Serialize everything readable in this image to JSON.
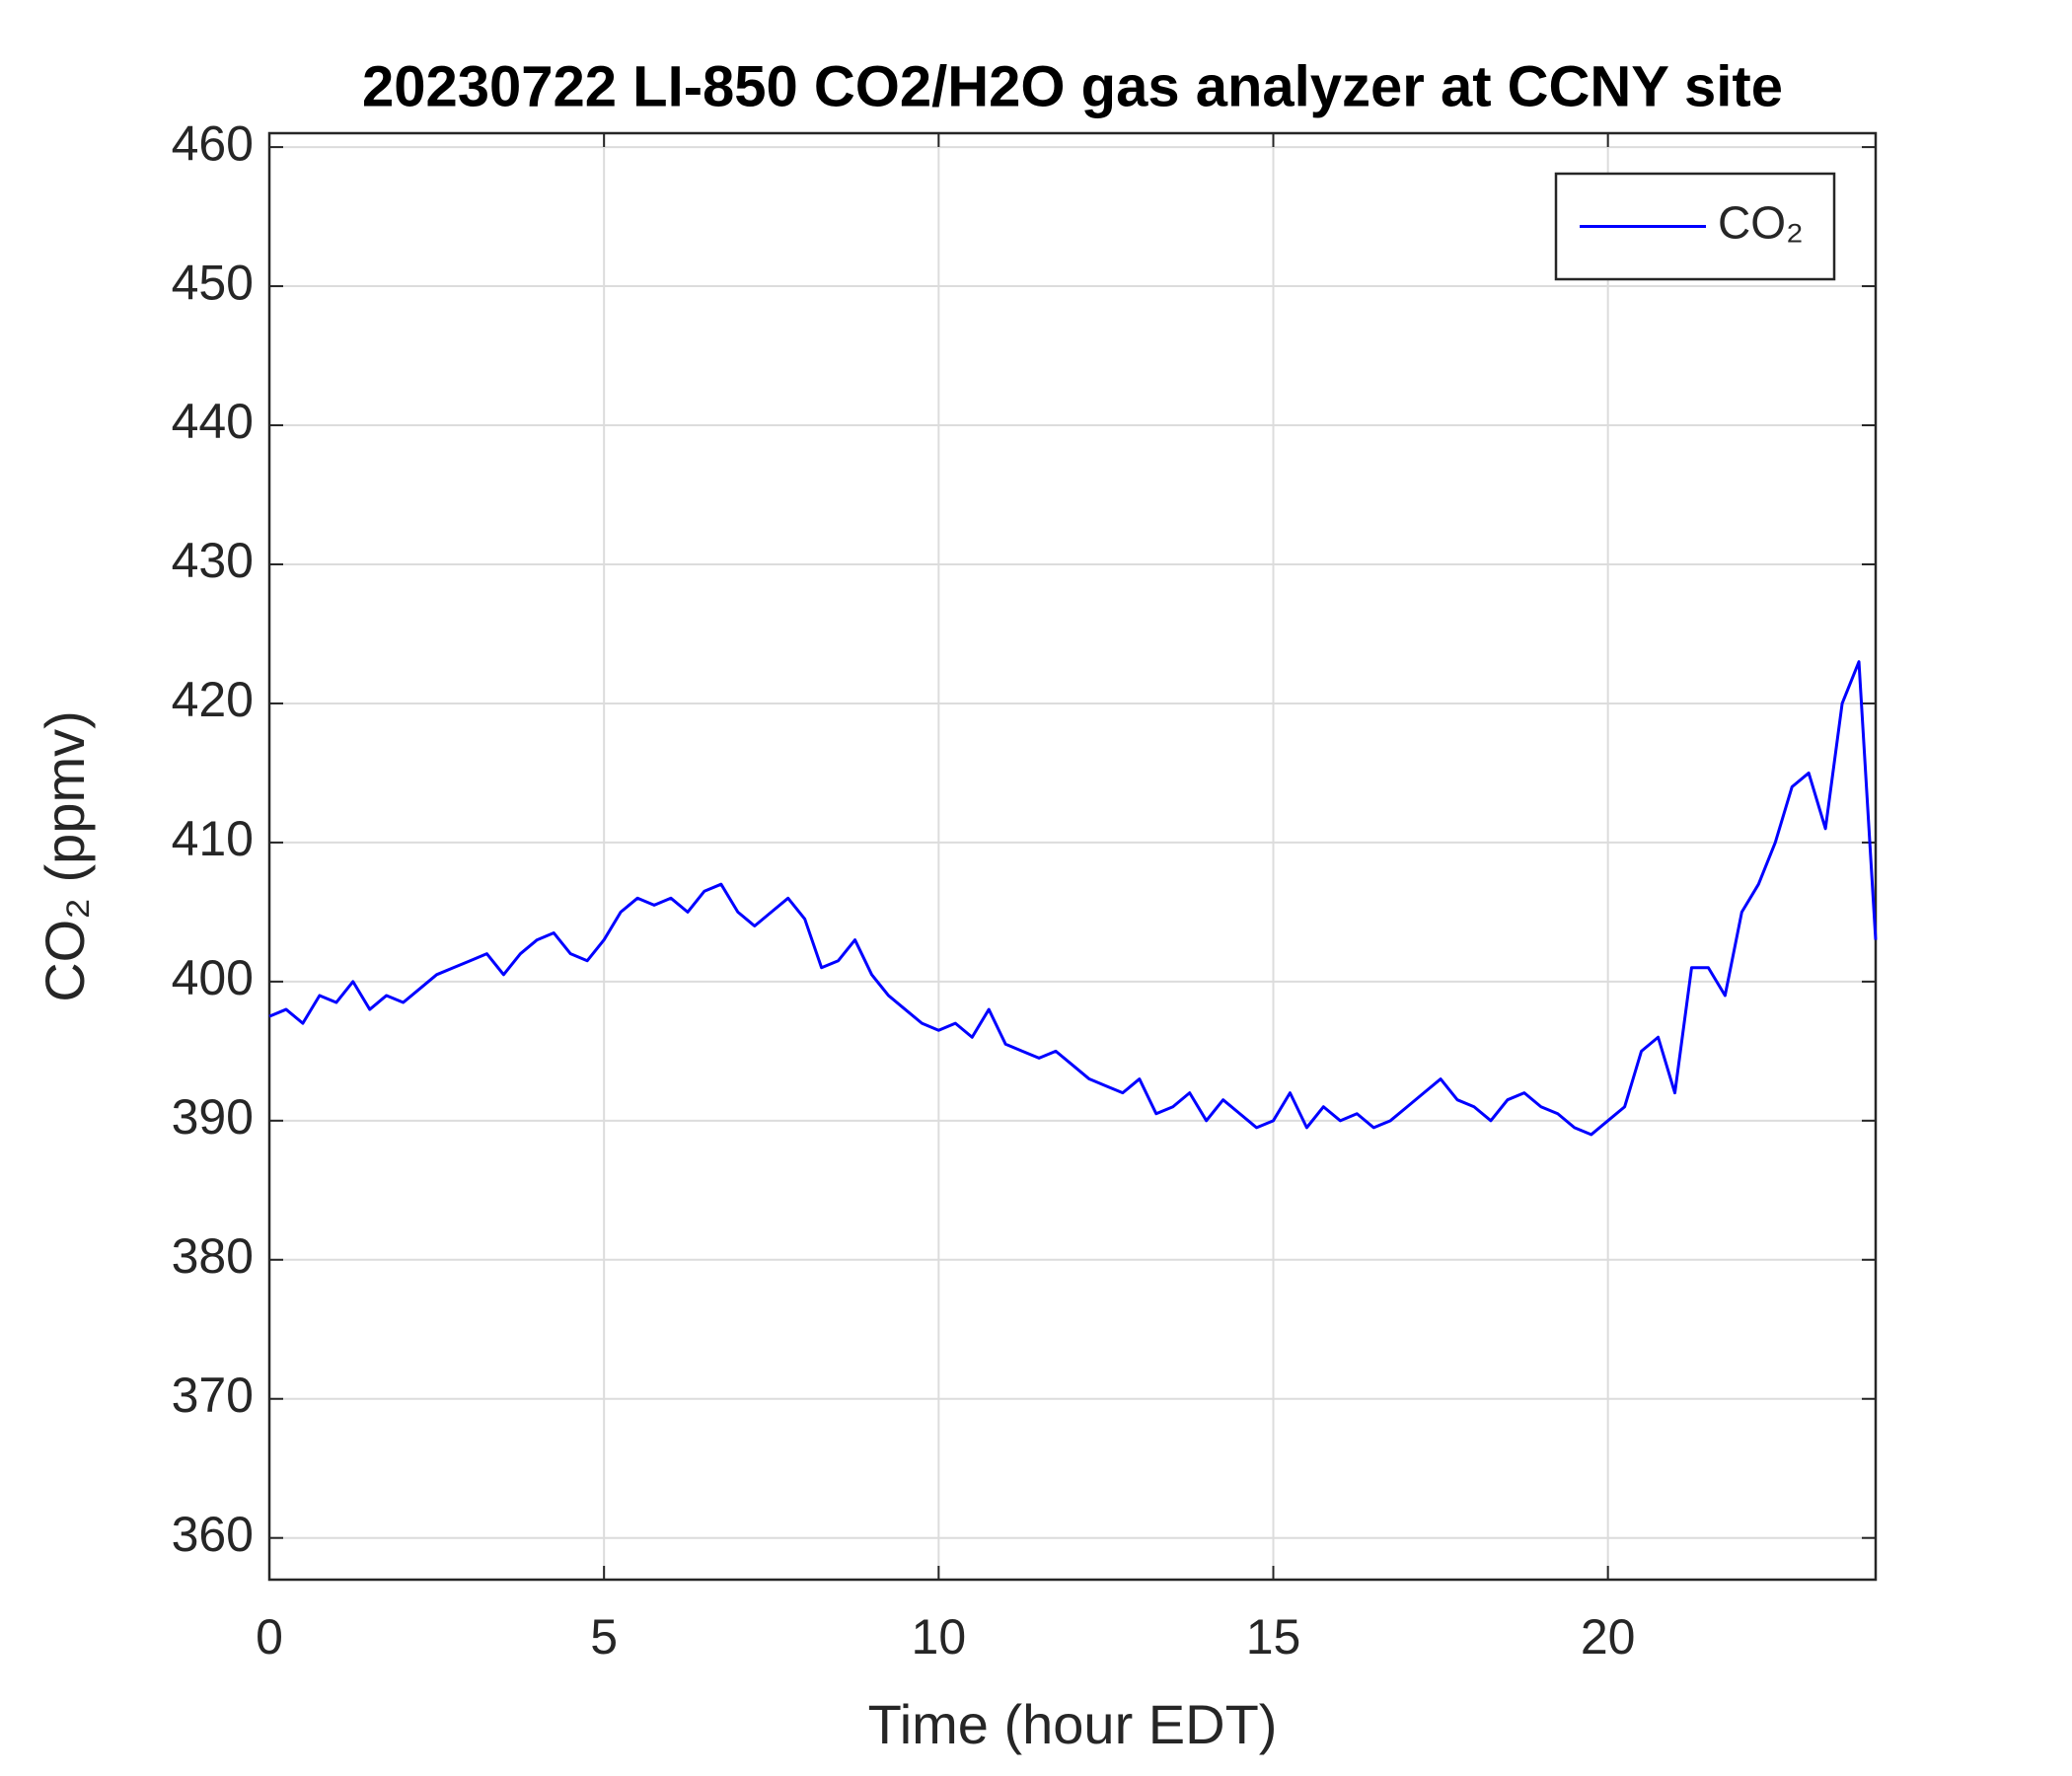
{
  "chart_data": {
    "type": "line",
    "title": "20230722 LI-850 CO2/H2O gas analyzer at CCNY site",
    "x_label": "Time (hour EDT)",
    "y_label": "CO₂ (ppmv)",
    "x": [
      0,
      0.25,
      0.5,
      0.75,
      1,
      1.25,
      1.5,
      1.75,
      2,
      2.25,
      2.5,
      2.75,
      3,
      3.25,
      3.5,
      3.75,
      4,
      4.25,
      4.5,
      4.75,
      5,
      5.25,
      5.5,
      5.75,
      6,
      6.25,
      6.5,
      6.75,
      7,
      7.25,
      7.5,
      7.75,
      8,
      8.25,
      8.5,
      8.75,
      9,
      9.25,
      9.5,
      9.75,
      10,
      10.25,
      10.5,
      10.75,
      11,
      11.25,
      11.5,
      11.75,
      12,
      12.25,
      12.5,
      12.75,
      13,
      13.25,
      13.5,
      13.75,
      14,
      14.25,
      14.5,
      14.75,
      15,
      15.25,
      15.5,
      15.75,
      16,
      16.25,
      16.5,
      16.75,
      17,
      17.25,
      17.5,
      17.75,
      18,
      18.25,
      18.5,
      18.75,
      19,
      19.25,
      19.5,
      19.75,
      20,
      20.25,
      20.5,
      20.75,
      21,
      21.25,
      21.5,
      21.75,
      22,
      22.25,
      22.5,
      22.75,
      23,
      23.25,
      23.5,
      23.75,
      24
    ],
    "series": [
      {
        "name": "CO₂",
        "color": "#0000ff",
        "values": [
          397.5,
          398,
          397,
          399,
          398.5,
          400,
          398,
          399,
          398.5,
          399.5,
          400.5,
          401,
          401.5,
          402,
          400.5,
          402,
          403,
          403.5,
          402,
          401.5,
          403,
          405,
          406,
          405.5,
          406,
          405,
          406.5,
          407,
          405,
          404,
          405,
          406,
          404.5,
          401,
          401.5,
          403,
          400.5,
          399,
          398,
          397,
          396.5,
          397,
          396,
          398,
          395.5,
          395,
          394.5,
          395,
          394,
          393,
          392.5,
          392,
          393,
          390.5,
          391,
          392,
          390,
          391.5,
          390.5,
          389.5,
          390,
          392,
          389.5,
          391,
          390,
          390.5,
          389.5,
          390,
          391,
          392,
          393,
          391.5,
          391,
          390,
          391.5,
          392,
          391,
          390.5,
          389.5,
          389,
          390,
          391,
          395,
          396,
          392,
          401,
          401,
          399,
          405,
          407,
          410,
          414,
          415,
          411,
          420,
          423,
          403
        ]
      }
    ],
    "xlim": [
      0,
      24
    ],
    "ylim": [
      357,
      461
    ],
    "xticks": [
      0,
      5,
      10,
      15,
      20
    ],
    "yticks": [
      360,
      370,
      380,
      390,
      400,
      410,
      420,
      430,
      440,
      450,
      460
    ],
    "grid": true,
    "legend": "upper right"
  }
}
